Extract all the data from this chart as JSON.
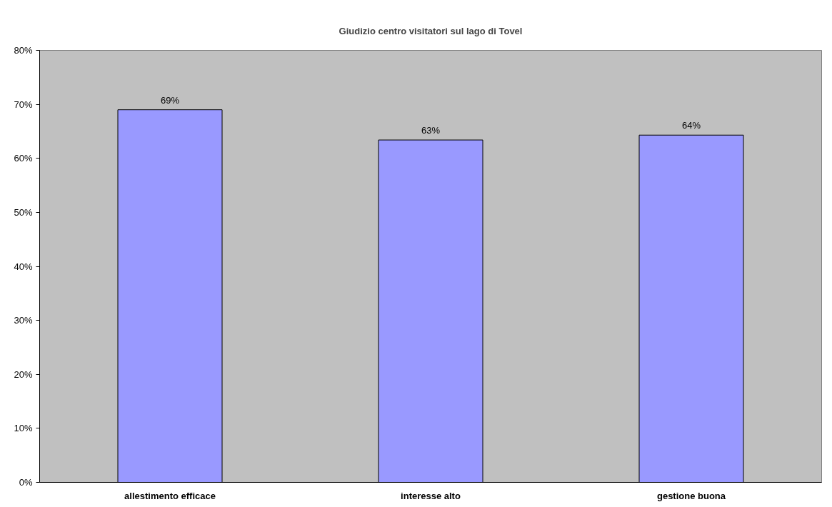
{
  "chart_data": {
    "type": "bar",
    "title": "Giudizio centro visitatori sul lago di Tovel",
    "categories": [
      "allestimento efficace",
      "interesse alto",
      "gestione buona"
    ],
    "values": [
      69.0,
      63.4,
      64.3
    ],
    "value_labels": [
      "69%",
      "63%",
      "64%"
    ],
    "color": "#9999ff",
    "ylim": [
      0,
      80
    ],
    "yticks": [
      {
        "value": 0,
        "label": "0%"
      },
      {
        "value": 10,
        "label": "10%"
      },
      {
        "value": 20,
        "label": "20%"
      },
      {
        "value": 30,
        "label": "30%"
      },
      {
        "value": 40,
        "label": "40%"
      },
      {
        "value": 50,
        "label": "50%"
      },
      {
        "value": 60,
        "label": "60%"
      },
      {
        "value": 70,
        "label": "70%"
      },
      {
        "value": 80,
        "label": "80%"
      }
    ],
    "grid": false
  }
}
